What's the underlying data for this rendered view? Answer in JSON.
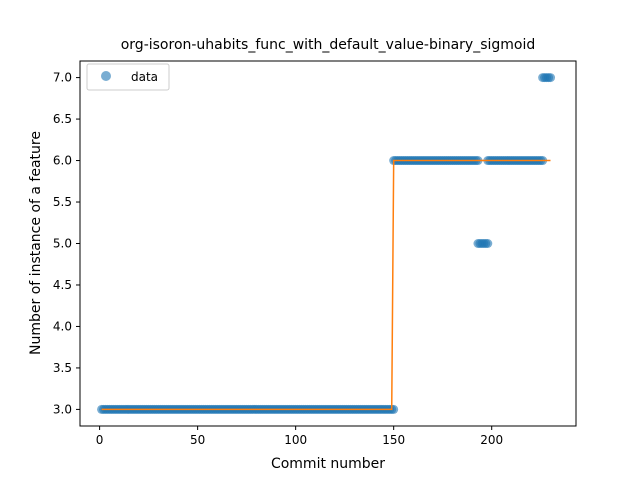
{
  "chart_data": {
    "type": "scatter",
    "title": "org-isoron-uhabits_func_with_default_value-binary_sigmoid",
    "xlabel": "Commit number",
    "ylabel": "Number of instance of a feature",
    "xlim": [
      -10,
      243
    ],
    "ylim": [
      2.8,
      7.2
    ],
    "xticks": [
      0,
      50,
      100,
      150,
      200
    ],
    "yticks": [
      3.0,
      3.5,
      4.0,
      4.5,
      5.0,
      5.5,
      6.0,
      6.5,
      7.0
    ],
    "grid": false,
    "legend": {
      "position": "top-left",
      "entries": [
        "data"
      ]
    },
    "colors": {
      "data": "#1f77b4",
      "fit": "#ff7f0e"
    },
    "series": [
      {
        "name": "data",
        "kind": "points",
        "segments": [
          {
            "x_start": 1,
            "x_end": 150,
            "y": 3.0
          },
          {
            "x_start": 150,
            "x_end": 193,
            "y": 6.0
          },
          {
            "x_start": 193,
            "x_end": 198,
            "y": 5.0
          },
          {
            "x_start": 198,
            "x_end": 226,
            "y": 6.0
          },
          {
            "x_start": 226,
            "x_end": 230,
            "y": 7.0
          }
        ]
      },
      {
        "kind": "line",
        "x": [
          1,
          149,
          150,
          230
        ],
        "y": [
          3.0,
          3.0,
          6.0,
          6.0
        ]
      }
    ]
  }
}
